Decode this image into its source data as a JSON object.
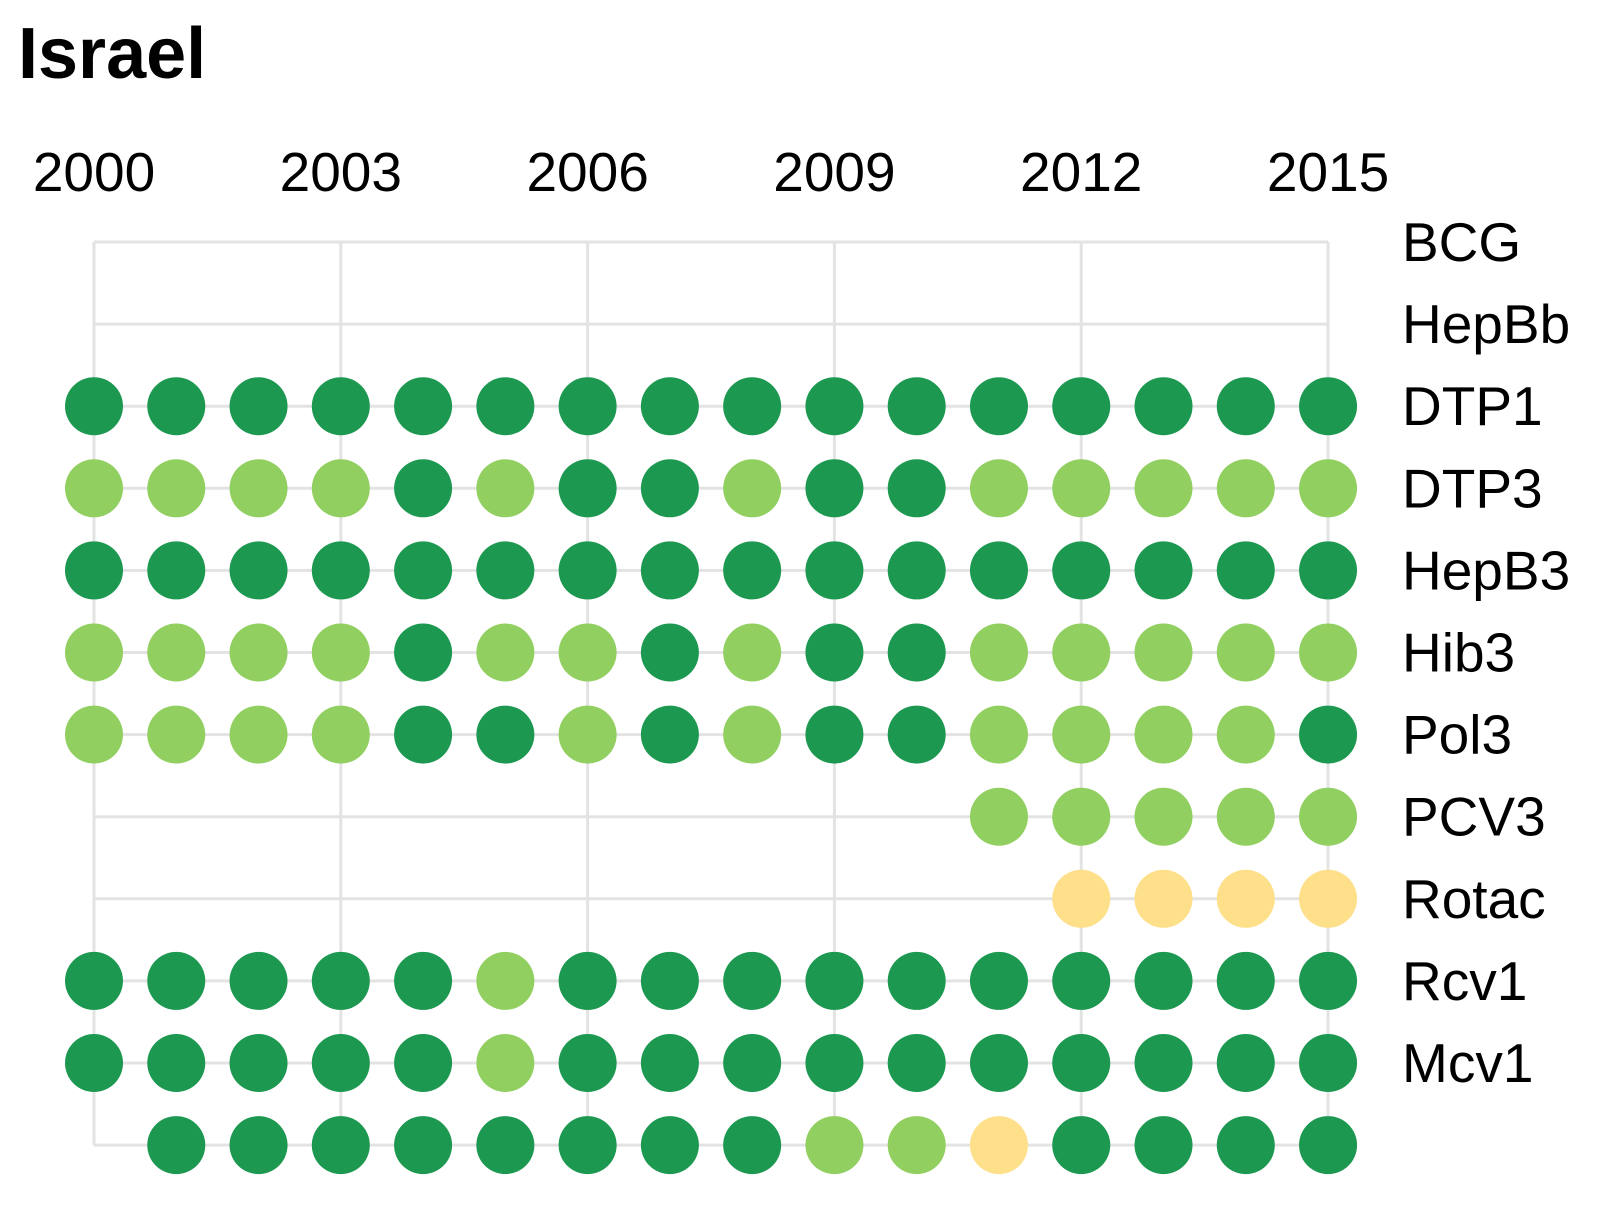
{
  "chart_data": {
    "type": "dot-matrix",
    "title": "Israel",
    "years": [
      2000,
      2001,
      2002,
      2003,
      2004,
      2005,
      2006,
      2007,
      2008,
      2009,
      2010,
      2011,
      2012,
      2013,
      2014,
      2015
    ],
    "year_tick_labels": [
      "2000",
      "2003",
      "2006",
      "2009",
      "2012",
      "2015"
    ],
    "row_labels": [
      "BCG",
      "HepBb",
      "DTP1",
      "DTP3",
      "HepB3",
      "Hib3",
      "Pol3",
      "PCV3",
      "Rotac",
      "Rcv1",
      "Mcv1",
      ""
    ],
    "colors": {
      "dark": "#1c9850",
      "medium": "#91cf60",
      "light": "#fee08b",
      "grid": "#e3e3e3"
    },
    "rows": [
      {
        "values": [
          null,
          null,
          null,
          null,
          null,
          null,
          null,
          null,
          null,
          null,
          null,
          null,
          null,
          null,
          null,
          null
        ]
      },
      {
        "values": [
          null,
          null,
          null,
          null,
          null,
          null,
          null,
          null,
          null,
          null,
          null,
          null,
          null,
          null,
          null,
          null
        ]
      },
      {
        "values": [
          "dark",
          "dark",
          "dark",
          "dark",
          "dark",
          "dark",
          "dark",
          "dark",
          "dark",
          "dark",
          "dark",
          "dark",
          "dark",
          "dark",
          "dark",
          "dark"
        ]
      },
      {
        "values": [
          "medium",
          "medium",
          "medium",
          "medium",
          "dark",
          "medium",
          "dark",
          "dark",
          "medium",
          "dark",
          "dark",
          "medium",
          "medium",
          "medium",
          "medium",
          "medium"
        ]
      },
      {
        "values": [
          "dark",
          "dark",
          "dark",
          "dark",
          "dark",
          "dark",
          "dark",
          "dark",
          "dark",
          "dark",
          "dark",
          "dark",
          "dark",
          "dark",
          "dark",
          "dark"
        ]
      },
      {
        "values": [
          "medium",
          "medium",
          "medium",
          "medium",
          "dark",
          "medium",
          "medium",
          "dark",
          "medium",
          "dark",
          "dark",
          "medium",
          "medium",
          "medium",
          "medium",
          "medium"
        ]
      },
      {
        "values": [
          "medium",
          "medium",
          "medium",
          "medium",
          "dark",
          "dark",
          "medium",
          "dark",
          "medium",
          "dark",
          "dark",
          "medium",
          "medium",
          "medium",
          "medium",
          "dark"
        ]
      },
      {
        "values": [
          null,
          null,
          null,
          null,
          null,
          null,
          null,
          null,
          null,
          null,
          null,
          "medium",
          "medium",
          "medium",
          "medium",
          "medium"
        ]
      },
      {
        "values": [
          null,
          null,
          null,
          null,
          null,
          null,
          null,
          null,
          null,
          null,
          null,
          null,
          "light",
          "light",
          "light",
          "light"
        ]
      },
      {
        "values": [
          "dark",
          "dark",
          "dark",
          "dark",
          "dark",
          "medium",
          "dark",
          "dark",
          "dark",
          "dark",
          "dark",
          "dark",
          "dark",
          "dark",
          "dark",
          "dark"
        ]
      },
      {
        "values": [
          "dark",
          "dark",
          "dark",
          "dark",
          "dark",
          "medium",
          "dark",
          "dark",
          "dark",
          "dark",
          "dark",
          "dark",
          "dark",
          "dark",
          "dark",
          "dark"
        ]
      },
      {
        "values": [
          null,
          "dark",
          "dark",
          "dark",
          "dark",
          "dark",
          "dark",
          "dark",
          "dark",
          "medium",
          "medium",
          "light",
          "dark",
          "dark",
          "dark",
          "dark"
        ]
      }
    ]
  }
}
